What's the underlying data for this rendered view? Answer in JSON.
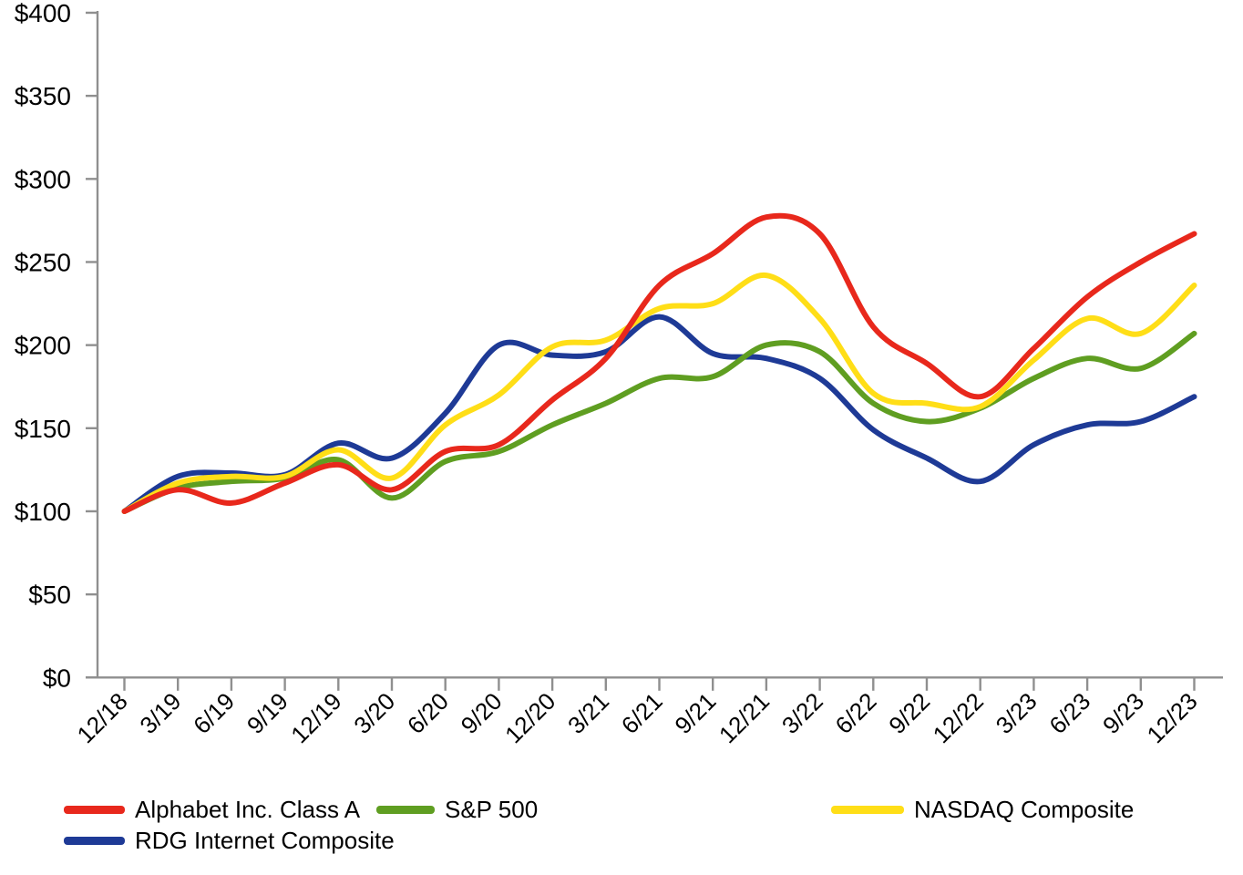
{
  "chart_data": {
    "type": "line",
    "title": "",
    "x_categories": [
      "12/18",
      "3/19",
      "6/19",
      "9/19",
      "12/19",
      "3/20",
      "6/20",
      "9/20",
      "12/20",
      "3/21",
      "6/21",
      "9/21",
      "12/21",
      "3/22",
      "6/22",
      "9/22",
      "12/22",
      "3/23",
      "6/23",
      "9/23",
      "12/23"
    ],
    "y_axis": {
      "min": 0,
      "max": 400,
      "step": 50,
      "tick_labels": [
        "$0",
        "$50",
        "$100",
        "$150",
        "$200",
        "$250",
        "$300",
        "$350",
        "$400"
      ]
    },
    "series": [
      {
        "name": "Alphabet Inc. Class A",
        "color": "#e8281c",
        "values": [
          100,
          113,
          105,
          117,
          128,
          113,
          136,
          140,
          167,
          192,
          236,
          255,
          277,
          267,
          211,
          189,
          169,
          198,
          229,
          250,
          267
        ]
      },
      {
        "name": "S&P 500",
        "color": "#5f9e21",
        "values": [
          100,
          114,
          118,
          120,
          131,
          108,
          130,
          136,
          152,
          165,
          180,
          181,
          200,
          196,
          165,
          154,
          162,
          180,
          192,
          186,
          207
        ]
      },
      {
        "name": "NASDAQ Composite",
        "color": "#ffde17",
        "values": [
          100,
          117,
          121,
          121,
          137,
          120,
          152,
          170,
          199,
          203,
          222,
          225,
          242,
          216,
          171,
          165,
          163,
          191,
          216,
          207,
          236
        ]
      },
      {
        "name": "RDG Internet Composite",
        "color": "#1e3a96",
        "values": [
          100,
          121,
          123,
          122,
          141,
          132,
          159,
          200,
          194,
          196,
          217,
          195,
          192,
          180,
          149,
          132,
          118,
          140,
          152,
          154,
          169
        ]
      }
    ],
    "legend_position": "bottom",
    "grid": "off",
    "axis_color": "#8f8f8f",
    "text_color": "#000000"
  }
}
